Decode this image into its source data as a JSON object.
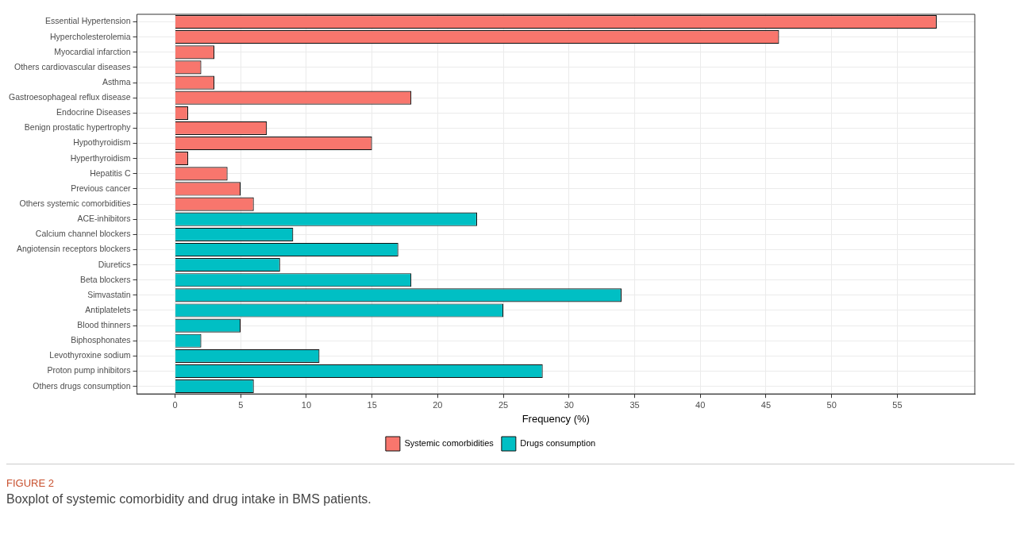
{
  "chart_data": {
    "type": "bar",
    "orientation": "horizontal",
    "title": "FIGURE 2",
    "subtitle": "Boxplot of systemic comorbidity and drug intake in BMS patients.",
    "xlabel": "Frequency (%)",
    "categories": [
      "Essential Hypertension",
      "Hypercholesterolemia",
      "Myocardial infarction",
      "Others cardiovascular diseases",
      "Asthma",
      "Gastroesophageal reflux disease",
      "Endocrine Diseases",
      "Benign prostatic hypertrophy",
      "Hypothyroidism",
      "Hyperthyroidism",
      "Hepatitis C",
      "Previous cancer",
      "Others systemic comorbidities",
      "ACE-inhibitors",
      "Calcium channel blockers",
      "Angiotensin receptors blockers",
      "Diuretics",
      "Beta blockers",
      "Simvastatin",
      "Antiplatelets",
      "Blood thinners",
      "Biphosphonates",
      "Levothyroxine sodium",
      "Proton pump inhibitors",
      "Others drugs consumption"
    ],
    "series": [
      {
        "name": "Systemic comorbidities",
        "color": "#f8766d",
        "values": [
          58,
          46,
          3,
          2,
          3,
          18,
          1,
          7,
          15,
          1,
          4,
          5,
          6,
          null,
          null,
          null,
          null,
          null,
          null,
          null,
          null,
          null,
          null,
          null,
          null
        ]
      },
      {
        "name": "Drugs consumption",
        "color": "#00bfc4",
        "values": [
          null,
          null,
          null,
          null,
          null,
          null,
          null,
          null,
          null,
          null,
          null,
          null,
          null,
          23,
          9,
          17,
          8,
          18,
          34,
          25,
          5,
          2,
          11,
          28,
          6
        ]
      }
    ],
    "xlim": [
      -2.9,
      60.9
    ],
    "xticks": [
      0,
      5,
      10,
      15,
      20,
      25,
      30,
      35,
      40,
      45,
      50,
      55
    ],
    "grid": true,
    "legend": "bottom"
  }
}
